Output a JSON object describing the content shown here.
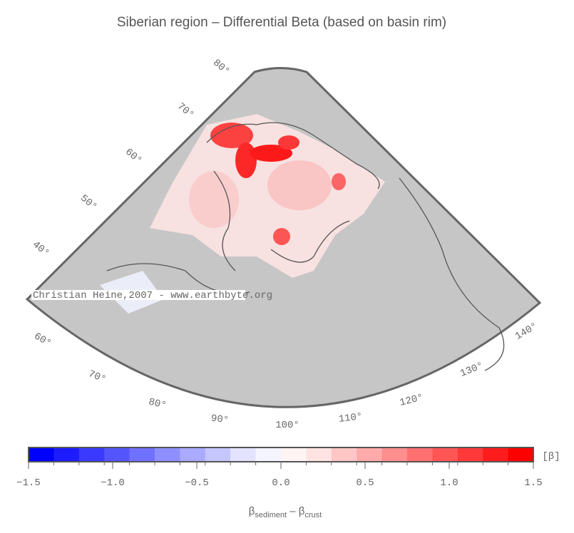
{
  "title": "Siberian region – Differential Beta (based on basin rim)",
  "map": {
    "lat_labels": [
      "80°",
      "70°",
      "60°",
      "50°",
      "40°"
    ],
    "lon_labels": [
      "60°",
      "70°",
      "80°",
      "90°",
      "100°",
      "110°",
      "120°",
      "130°",
      "140°"
    ],
    "watermark": "Christian Heine,2007 - www.earthbyte.org"
  },
  "colorbar": {
    "lim": [
      -1.5,
      1.5
    ],
    "ticks": [
      {
        "value": -1.5,
        "label": "−1.5"
      },
      {
        "value": -1.0,
        "label": "−1.0"
      },
      {
        "value": -0.5,
        "label": "−0.5"
      },
      {
        "value": 0,
        "label": "0.0"
      },
      0.5,
      {
        "value": 1.0,
        "label": "1.0"
      },
      1.5
    ],
    "colors": [
      "#0000ff",
      "#1c1cff",
      "#3939ff",
      "#5555ff",
      "#7171ff",
      "#8e8eff",
      "#aaaaff",
      "#c6c6ff",
      "#e3e3ff",
      "#f4f4ff",
      "#fff4f4",
      "#ffe3e3",
      "#ffc6c6",
      "#ffaaaa",
      "#ff8e8e",
      "#ff7171",
      "#ff5555",
      "#ff3939",
      "#ff1c1c",
      "#ff0000"
    ],
    "unit": "[β]",
    "label": {
      "symbol1": "β",
      "sub1": "sediment",
      "mid": " – β",
      "sub2": "crust"
    }
  }
}
